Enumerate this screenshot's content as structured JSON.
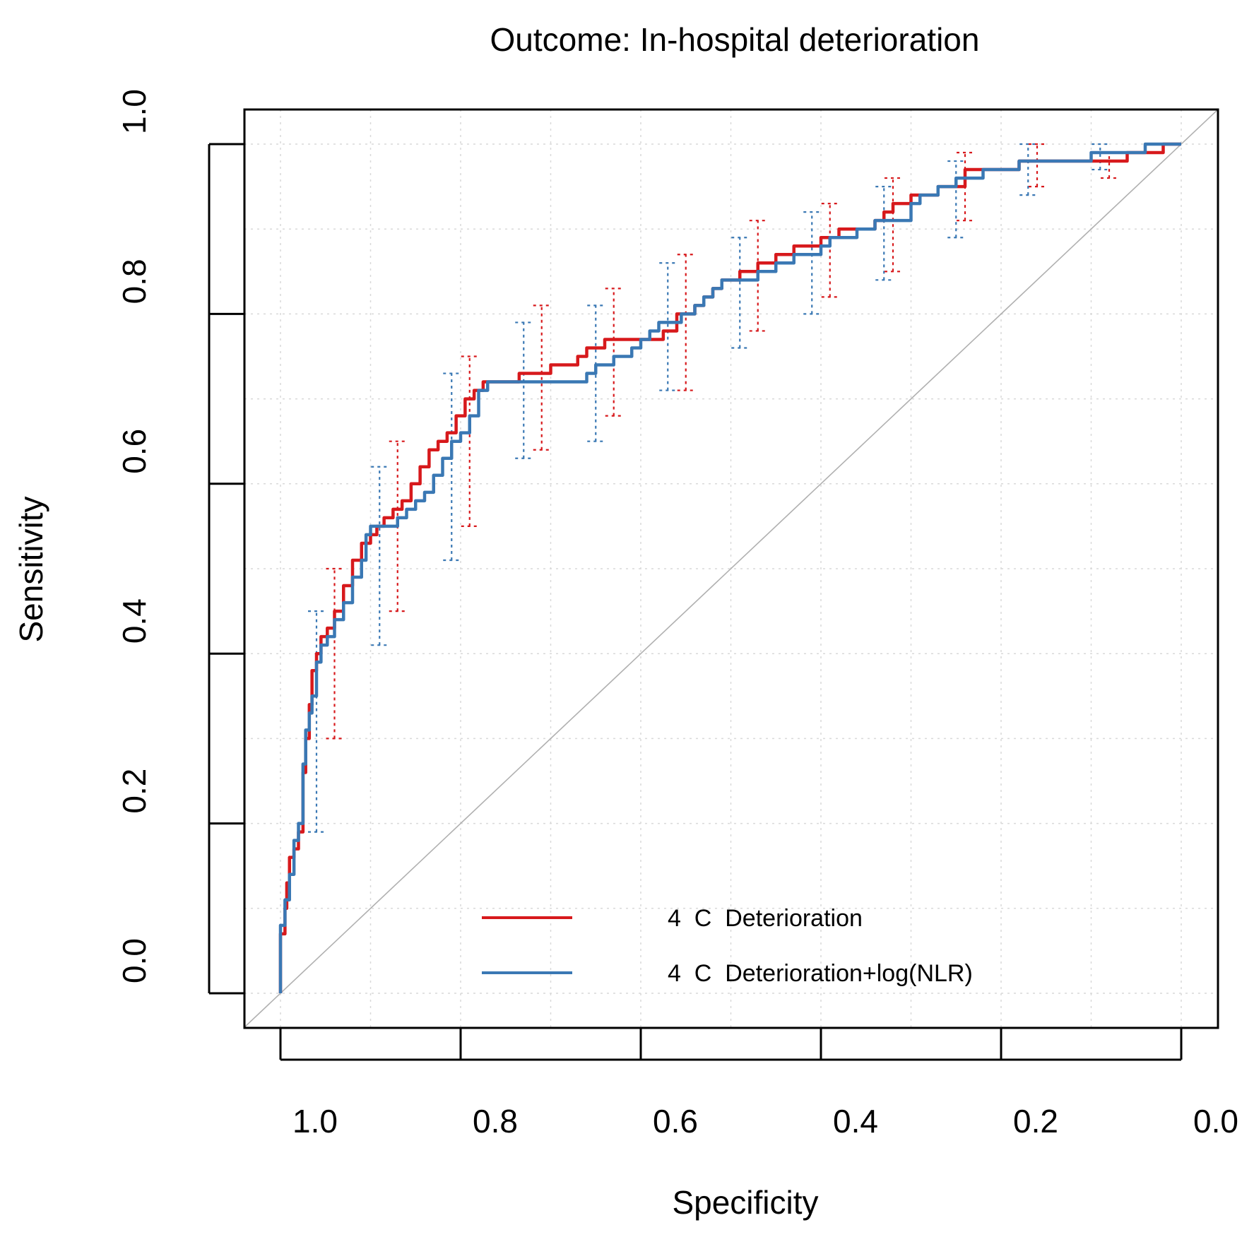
{
  "chart_data": {
    "type": "line",
    "title": "Outcome: In-hospital deterioration",
    "xlabel": "Specificity",
    "ylabel": "Sensitivity",
    "xlim": [
      1.0,
      0.0
    ],
    "ylim": [
      0.0,
      1.0
    ],
    "x_reversed": true,
    "grid": true,
    "xticks": [
      1.0,
      0.8,
      0.6,
      0.4,
      0.2,
      0.0
    ],
    "xtick_labels": [
      "1.0",
      "0.8",
      "0.6",
      "0.4",
      "0.2",
      "0.0"
    ],
    "yticks": [
      0.0,
      0.2,
      0.4,
      0.6,
      0.8,
      1.0
    ],
    "ytick_labels": [
      "0.0",
      "0.2",
      "0.4",
      "0.6",
      "0.8",
      "1.0"
    ],
    "reference_line": {
      "from": [
        1.0,
        0.0
      ],
      "to": [
        0.0,
        1.0
      ],
      "color": "#b0b0b0"
    },
    "legend_position": "bottom-center",
    "series": [
      {
        "name": "4  C  Deterioration",
        "color": "#d7191c",
        "specificity": [
          1.0,
          1.0,
          0.995,
          0.993,
          0.99,
          0.985,
          0.98,
          0.975,
          0.972,
          0.968,
          0.965,
          0.96,
          0.955,
          0.948,
          0.94,
          0.93,
          0.92,
          0.91,
          0.9,
          0.893,
          0.885,
          0.875,
          0.865,
          0.855,
          0.845,
          0.835,
          0.825,
          0.815,
          0.805,
          0.795,
          0.785,
          0.775,
          0.765,
          0.755,
          0.745,
          0.735,
          0.725,
          0.715,
          0.7,
          0.69,
          0.68,
          0.67,
          0.66,
          0.65,
          0.64,
          0.63,
          0.61,
          0.6,
          0.59,
          0.575,
          0.56,
          0.55,
          0.54,
          0.53,
          0.52,
          0.51,
          0.5,
          0.49,
          0.48,
          0.47,
          0.46,
          0.45,
          0.44,
          0.43,
          0.42,
          0.41,
          0.4,
          0.39,
          0.38,
          0.37,
          0.36,
          0.35,
          0.34,
          0.33,
          0.32,
          0.31,
          0.3,
          0.29,
          0.28,
          0.27,
          0.26,
          0.25,
          0.24,
          0.22,
          0.2,
          0.18,
          0.16,
          0.14,
          0.12,
          0.1,
          0.08,
          0.06,
          0.04,
          0.02,
          0.0
        ],
        "sensitivity": [
          0.0,
          0.07,
          0.1,
          0.13,
          0.16,
          0.17,
          0.19,
          0.26,
          0.3,
          0.34,
          0.38,
          0.4,
          0.42,
          0.43,
          0.45,
          0.48,
          0.51,
          0.53,
          0.54,
          0.55,
          0.56,
          0.57,
          0.58,
          0.6,
          0.62,
          0.64,
          0.65,
          0.66,
          0.68,
          0.7,
          0.71,
          0.72,
          0.72,
          0.72,
          0.72,
          0.73,
          0.73,
          0.73,
          0.74,
          0.74,
          0.74,
          0.75,
          0.76,
          0.76,
          0.77,
          0.77,
          0.77,
          0.77,
          0.77,
          0.78,
          0.8,
          0.8,
          0.81,
          0.82,
          0.83,
          0.84,
          0.84,
          0.85,
          0.85,
          0.86,
          0.86,
          0.87,
          0.87,
          0.88,
          0.88,
          0.88,
          0.89,
          0.89,
          0.9,
          0.9,
          0.9,
          0.9,
          0.91,
          0.92,
          0.93,
          0.93,
          0.94,
          0.94,
          0.94,
          0.95,
          0.95,
          0.95,
          0.97,
          0.97,
          0.97,
          0.98,
          0.98,
          0.98,
          0.98,
          0.98,
          0.98,
          0.99,
          0.99,
          1.0,
          1.0
        ]
      },
      {
        "name": "4  C  Deterioration+log(NLR)",
        "color": "#3a78b4",
        "specificity": [
          1.0,
          1.0,
          0.995,
          0.99,
          0.985,
          0.98,
          0.975,
          0.972,
          0.968,
          0.965,
          0.96,
          0.955,
          0.948,
          0.94,
          0.93,
          0.92,
          0.91,
          0.905,
          0.9,
          0.89,
          0.88,
          0.87,
          0.86,
          0.85,
          0.84,
          0.83,
          0.82,
          0.81,
          0.8,
          0.79,
          0.78,
          0.77,
          0.76,
          0.75,
          0.74,
          0.72,
          0.7,
          0.68,
          0.66,
          0.65,
          0.64,
          0.63,
          0.61,
          0.6,
          0.59,
          0.58,
          0.565,
          0.555,
          0.54,
          0.53,
          0.52,
          0.51,
          0.5,
          0.49,
          0.47,
          0.45,
          0.43,
          0.41,
          0.4,
          0.39,
          0.38,
          0.37,
          0.36,
          0.35,
          0.34,
          0.33,
          0.32,
          0.3,
          0.29,
          0.28,
          0.27,
          0.26,
          0.25,
          0.24,
          0.22,
          0.2,
          0.18,
          0.16,
          0.14,
          0.12,
          0.1,
          0.08,
          0.06,
          0.04,
          0.02,
          0.0
        ],
        "sensitivity": [
          0.0,
          0.08,
          0.11,
          0.14,
          0.18,
          0.2,
          0.27,
          0.31,
          0.33,
          0.35,
          0.39,
          0.41,
          0.42,
          0.44,
          0.46,
          0.49,
          0.51,
          0.54,
          0.55,
          0.55,
          0.55,
          0.56,
          0.57,
          0.58,
          0.59,
          0.61,
          0.63,
          0.65,
          0.66,
          0.68,
          0.71,
          0.72,
          0.72,
          0.72,
          0.72,
          0.72,
          0.72,
          0.72,
          0.73,
          0.74,
          0.74,
          0.75,
          0.76,
          0.77,
          0.78,
          0.79,
          0.79,
          0.8,
          0.81,
          0.82,
          0.83,
          0.84,
          0.84,
          0.84,
          0.85,
          0.86,
          0.87,
          0.87,
          0.88,
          0.89,
          0.89,
          0.89,
          0.9,
          0.9,
          0.91,
          0.91,
          0.91,
          0.93,
          0.94,
          0.94,
          0.95,
          0.95,
          0.96,
          0.96,
          0.97,
          0.97,
          0.98,
          0.98,
          0.98,
          0.98,
          0.99,
          0.99,
          0.99,
          1.0,
          1.0,
          1.0
        ]
      }
    ],
    "confidence_intervals": [
      {
        "series": "4  C  Deterioration+log(NLR)",
        "color": "#3a78b4",
        "points": [
          {
            "specificity": 0.96,
            "lower": 0.19,
            "upper": 0.45
          },
          {
            "specificity": 0.89,
            "lower": 0.41,
            "upper": 0.62
          },
          {
            "specificity": 0.81,
            "lower": 0.51,
            "upper": 0.73
          },
          {
            "specificity": 0.73,
            "lower": 0.63,
            "upper": 0.79
          },
          {
            "specificity": 0.65,
            "lower": 0.65,
            "upper": 0.81
          },
          {
            "specificity": 0.57,
            "lower": 0.71,
            "upper": 0.86
          },
          {
            "specificity": 0.49,
            "lower": 0.76,
            "upper": 0.89
          },
          {
            "specificity": 0.41,
            "lower": 0.8,
            "upper": 0.92
          },
          {
            "specificity": 0.33,
            "lower": 0.84,
            "upper": 0.95
          },
          {
            "specificity": 0.25,
            "lower": 0.89,
            "upper": 0.98
          },
          {
            "specificity": 0.17,
            "lower": 0.94,
            "upper": 1.0
          },
          {
            "specificity": 0.09,
            "lower": 0.97,
            "upper": 1.0
          }
        ]
      },
      {
        "series": "4  C  Deterioration",
        "color": "#d7191c",
        "points": [
          {
            "specificity": 0.94,
            "lower": 0.3,
            "upper": 0.5
          },
          {
            "specificity": 0.87,
            "lower": 0.45,
            "upper": 0.65
          },
          {
            "specificity": 0.79,
            "lower": 0.55,
            "upper": 0.75
          },
          {
            "specificity": 0.71,
            "lower": 0.64,
            "upper": 0.81
          },
          {
            "specificity": 0.63,
            "lower": 0.68,
            "upper": 0.83
          },
          {
            "specificity": 0.55,
            "lower": 0.71,
            "upper": 0.87
          },
          {
            "specificity": 0.47,
            "lower": 0.78,
            "upper": 0.91
          },
          {
            "specificity": 0.39,
            "lower": 0.82,
            "upper": 0.93
          },
          {
            "specificity": 0.32,
            "lower": 0.85,
            "upper": 0.96
          },
          {
            "specificity": 0.24,
            "lower": 0.91,
            "upper": 0.99
          },
          {
            "specificity": 0.16,
            "lower": 0.95,
            "upper": 1.0
          },
          {
            "specificity": 0.08,
            "lower": 0.96,
            "upper": 0.99
          }
        ]
      }
    ]
  }
}
